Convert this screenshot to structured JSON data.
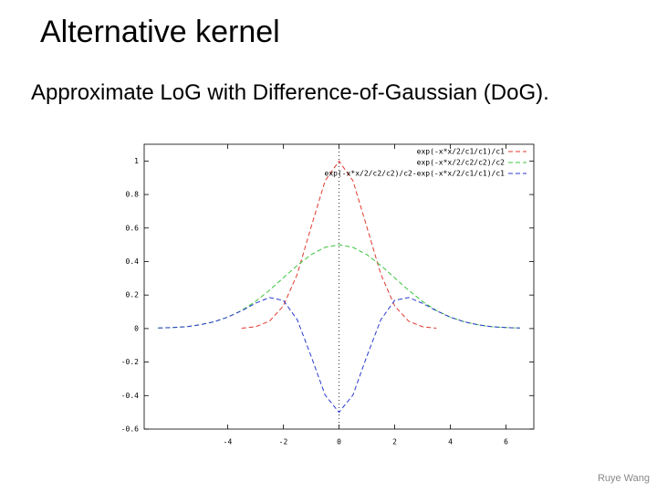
{
  "slide": {
    "title": "Alternative kernel",
    "text": "Approximate LoG with Difference-of-Gaussian (DoG).",
    "footer": "Ruye Wang"
  },
  "chart_data": {
    "type": "line",
    "x": [
      -6.5,
      -6,
      -5.5,
      -5,
      -4.5,
      -4,
      -3.5,
      -3,
      -2.5,
      -2,
      -1.5,
      -1,
      -0.5,
      0,
      0.5,
      1,
      1.5,
      2,
      2.5,
      3,
      3.5,
      4,
      4.5,
      5,
      5.5,
      6,
      6.5
    ],
    "series": [
      {
        "name": "exp(-x*x/2/c1/c1)/c1",
        "color": "#e03a2e",
        "values": [
          null,
          null,
          null,
          null,
          null,
          null,
          0.002,
          0.011,
          0.044,
          0.135,
          0.325,
          0.607,
          0.882,
          1,
          0.882,
          0.607,
          0.325,
          0.135,
          0.044,
          0.011,
          0.002,
          null,
          null,
          null,
          null,
          null,
          null
        ]
      },
      {
        "name": "exp(-x*x/2/c2/c2)/c2",
        "color": "#3cc43c",
        "values": [
          0.003,
          0.006,
          0.011,
          0.022,
          0.04,
          0.068,
          0.108,
          0.162,
          0.229,
          0.303,
          0.377,
          0.441,
          0.485,
          0.5,
          0.485,
          0.441,
          0.377,
          0.303,
          0.229,
          0.162,
          0.108,
          0.068,
          0.04,
          0.022,
          0.011,
          0.006,
          0.003
        ]
      },
      {
        "name": "exp(-x*x/2/c2/c2)/c2-exp(-x*x/2/c1/c1)/c1",
        "color": "#2a3acd",
        "values": [
          0.003,
          0.006,
          0.011,
          0.022,
          0.04,
          0.068,
          0.106,
          0.151,
          0.185,
          0.168,
          0.052,
          -0.166,
          -0.397,
          -0.5,
          -0.397,
          -0.166,
          0.052,
          0.168,
          0.185,
          0.151,
          0.106,
          0.068,
          0.04,
          0.022,
          0.011,
          0.006,
          0.003
        ]
      }
    ],
    "xlim": [
      -7,
      7
    ],
    "xticks": [
      -4,
      -2,
      0,
      2,
      4,
      6
    ],
    "ylim": [
      -0.6,
      1.1
    ],
    "yticks": [
      -0.6,
      -0.4,
      -0.2,
      0,
      0.2,
      0.4,
      0.6,
      0.8,
      1
    ],
    "legend": "upper right",
    "dashed": true
  }
}
